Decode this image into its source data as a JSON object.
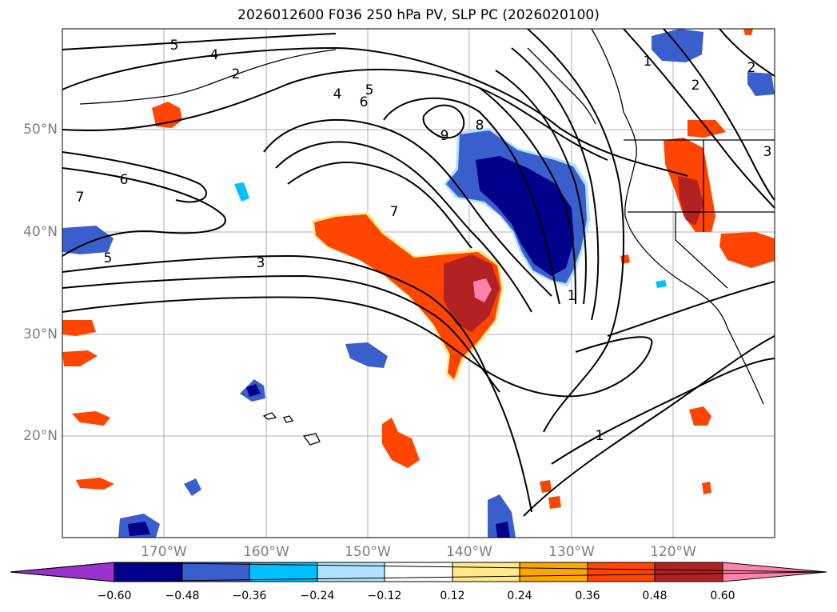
{
  "title": "2026012600 F036 250 hPa PV, SLP PC (2026020100)",
  "lat_labels": [
    "50°N",
    "40°N",
    "30°N",
    "20°N"
  ],
  "lon_labels": [
    "170°W",
    "160°W",
    "150°W",
    "140°W",
    "130°W",
    "120°W"
  ],
  "contour_labels": [
    "5",
    "4",
    "2",
    "4",
    "5",
    "6",
    "9",
    "8",
    "6",
    "7",
    "7",
    "5",
    "3",
    "1",
    "1",
    "1",
    "2",
    "2",
    "3"
  ],
  "colorbar": {
    "ticks": [
      "−0.60",
      "−0.48",
      "−0.36",
      "−0.24",
      "−0.12",
      "0.12",
      "0.24",
      "0.36",
      "0.48",
      "0.60"
    ],
    "colors": [
      "#9933cc",
      "#00008b",
      "#3a5fcd",
      "#00bfff",
      "#b0e2ff",
      "#ffffff",
      "#ffe98a",
      "#ffa500",
      "#ff4500",
      "#b22222",
      "#ff82ab"
    ]
  }
}
